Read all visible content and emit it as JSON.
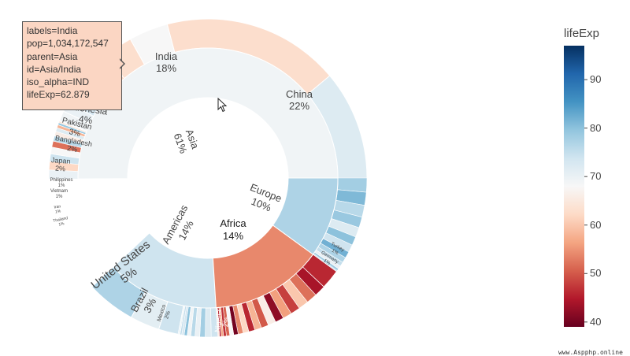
{
  "chart_data": {
    "type": "sunburst",
    "color_metric": "lifeExp",
    "colorbar": {
      "title": "lifeExp",
      "range": [
        39,
        97
      ],
      "ticks": [
        40,
        50,
        60,
        70,
        80,
        90
      ],
      "colorscale": "RdBu"
    },
    "root": [
      {
        "label": "Asia",
        "percent": "61%",
        "lifeExp": 69
      },
      {
        "label": "Americas",
        "percent": "14%",
        "lifeExp": 74
      },
      {
        "label": "Africa",
        "percent": "14%",
        "lifeExp": 54
      },
      {
        "label": "Europe",
        "percent": "10%",
        "lifeExp": 77
      }
    ],
    "labelled_countries": [
      {
        "label": "India",
        "parent": "Asia",
        "percent": "18%",
        "lifeExp": 62.879
      },
      {
        "label": "China",
        "parent": "Asia",
        "percent": "22%",
        "lifeExp": 72
      },
      {
        "label": "Indonesia",
        "parent": "Asia",
        "percent": "4%",
        "lifeExp": 68
      },
      {
        "label": "Pakistan",
        "parent": "Asia",
        "percent": "3%",
        "lifeExp": 63
      },
      {
        "label": "Bangladesh",
        "parent": "Asia",
        "percent": "2%",
        "lifeExp": 62
      },
      {
        "label": "Japan",
        "parent": "Asia",
        "percent": "2%",
        "lifeExp": 82
      },
      {
        "label": "Philippines",
        "parent": "Asia",
        "percent": "1%",
        "lifeExp": 71
      },
      {
        "label": "Vietnam",
        "parent": "Asia",
        "percent": "1%",
        "lifeExp": 73
      },
      {
        "label": "Iran",
        "parent": "Asia",
        "percent": "1%",
        "lifeExp": 70
      },
      {
        "label": "Thailand",
        "parent": "Asia",
        "percent": "1%",
        "lifeExp": 69
      },
      {
        "label": "United States",
        "parent": "Americas",
        "percent": "5%",
        "lifeExp": 77
      },
      {
        "label": "Brazil",
        "parent": "Americas",
        "percent": "3%",
        "lifeExp": 71
      },
      {
        "label": "Mexico",
        "parent": "Americas",
        "percent": "2%",
        "lifeExp": 74
      },
      {
        "label": "Nigeria",
        "parent": "Africa",
        "percent": "2%",
        "lifeExp": 46
      },
      {
        "label": "Turkey",
        "parent": "Europe",
        "percent": "1%",
        "lifeExp": 70
      },
      {
        "label": "Germany",
        "parent": "Europe",
        "percent": "1%",
        "lifeExp": 78
      }
    ]
  },
  "tooltip": {
    "lines": [
      "labels=India",
      "pop=1,034,172,547",
      "parent=Asia",
      "id=Asia/India",
      "iso_alpha=IND",
      "lifeExp=62.879"
    ]
  },
  "watermark": "www.Aspphp.online"
}
